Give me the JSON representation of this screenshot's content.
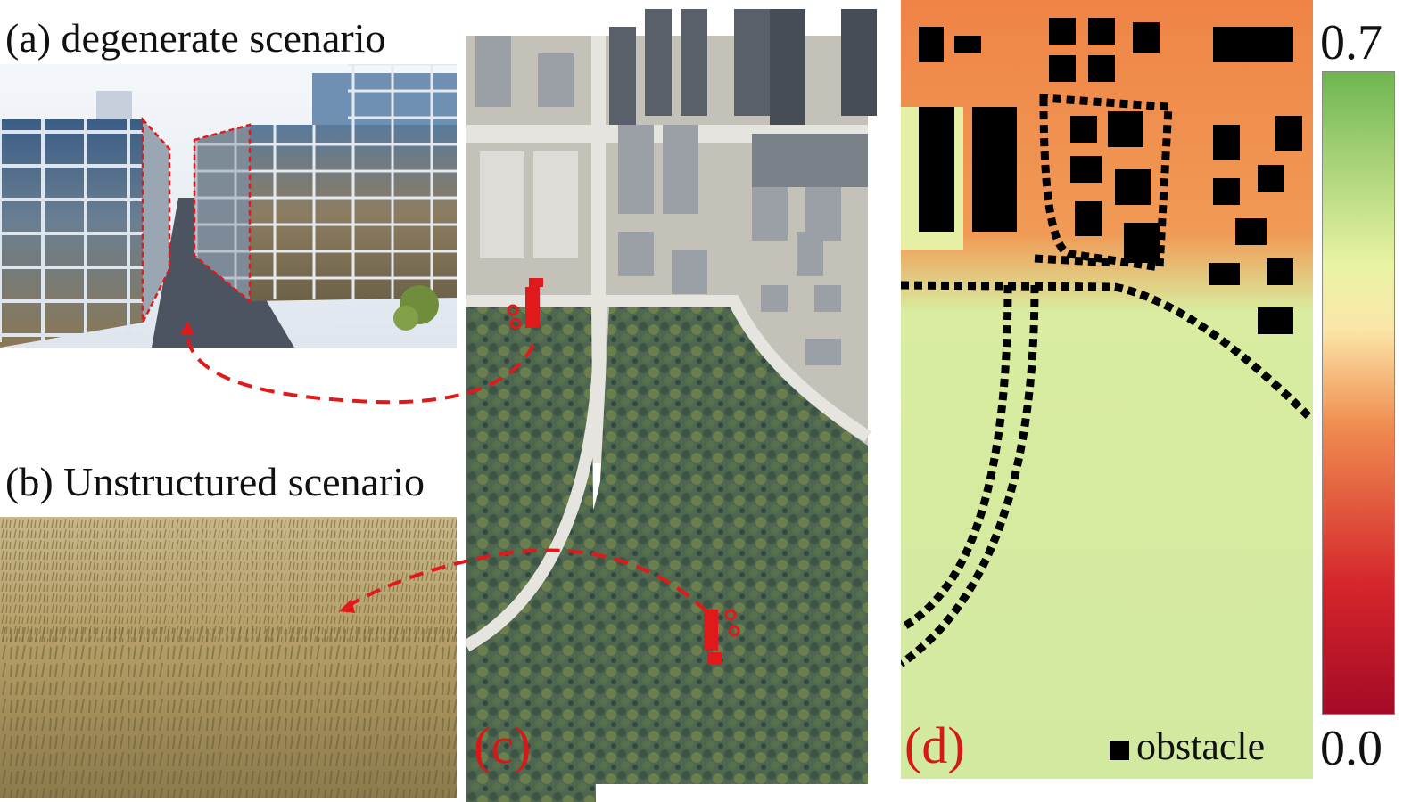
{
  "panels": {
    "a": {
      "label": "(a) degenerate scenario"
    },
    "b": {
      "label": "(b) Unstructured scenario"
    },
    "c": {
      "label": "(c)"
    },
    "d": {
      "label": "(d)",
      "legend": "obstacle"
    }
  },
  "colorbar": {
    "max": "0.7",
    "min": "0.0",
    "colors": [
      "#6fb64f",
      "#e9f3a4",
      "#fbe6a8",
      "#f08d50",
      "#d4262c",
      "#a50a26"
    ]
  },
  "icons": [
    "camera-robot-icon",
    "camera-robot-icon"
  ]
}
